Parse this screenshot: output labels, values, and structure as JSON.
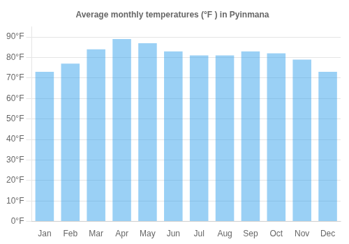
{
  "chart_data": {
    "type": "bar",
    "title": "Average monthly temperatures (°F ) in Pyinmana",
    "categories": [
      "Jan",
      "Feb",
      "Mar",
      "Apr",
      "May",
      "Jun",
      "Jul",
      "Aug",
      "Sep",
      "Oct",
      "Nov",
      "Dec"
    ],
    "values": [
      73,
      77,
      84,
      89,
      87,
      83,
      81,
      81,
      83,
      82,
      79,
      73
    ],
    "ylim": [
      0,
      95
    ],
    "yticks": [
      {
        "value": 0,
        "label": "0°F"
      },
      {
        "value": 10,
        "label": "10°F"
      },
      {
        "value": 20,
        "label": "20°F"
      },
      {
        "value": 30,
        "label": "30°F"
      },
      {
        "value": 40,
        "label": "40°F"
      },
      {
        "value": 50,
        "label": "50°F"
      },
      {
        "value": 60,
        "label": "60°F"
      },
      {
        "value": 70,
        "label": "70°F"
      },
      {
        "value": 80,
        "label": "80°F"
      },
      {
        "value": 90,
        "label": "90°F"
      }
    ],
    "grid": true
  }
}
